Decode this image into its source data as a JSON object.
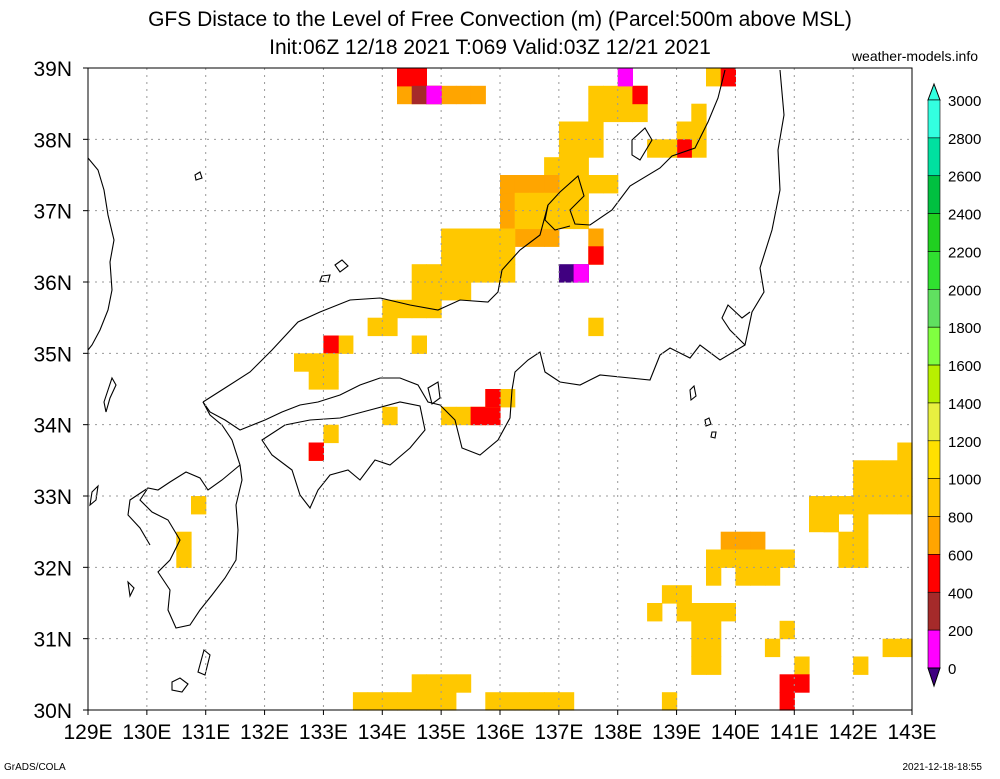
{
  "title_line1": "GFS Distace to the Level of Free Convection (m) (Parcel:500m above MSL)",
  "title_line2": "Init:06Z 12/18 2021 T:069 Valid:03Z 12/21 2021",
  "site": "weather-models.info",
  "footer_left": "GrADS/COLA",
  "footer_right": "2021-12-18-18:55",
  "lon_labels": [
    "129E",
    "130E",
    "131E",
    "132E",
    "133E",
    "134E",
    "135E",
    "136E",
    "137E",
    "138E",
    "139E",
    "140E",
    "141E",
    "142E",
    "143E"
  ],
  "lat_labels": [
    "39N",
    "38N",
    "37N",
    "36N",
    "35N",
    "34N",
    "33N",
    "32N",
    "31N",
    "30N"
  ],
  "legend": {
    "labels": [
      "3000",
      "2800",
      "2600",
      "2400",
      "2200",
      "2000",
      "1800",
      "1600",
      "1400",
      "1200",
      "1000",
      "800",
      "600",
      "400",
      "200",
      "0"
    ],
    "colors_top_to_bottom": [
      "#33ffe0",
      "#00e0a0",
      "#00c040",
      "#20d020",
      "#30e030",
      "#60e060",
      "#80ff40",
      "#b8f000",
      "#e8f040",
      "#ffe000",
      "#ffc800",
      "#ffa500",
      "#ff0000",
      "#a52a2a",
      "#ff00ff",
      "#400080"
    ]
  },
  "colors": {
    "c1000": "#ffc800",
    "c800": "#ffa500",
    "c1200": "#ffe000",
    "c600": "#ff0000",
    "c400": "#a52a2a",
    "c200": "#ff00ff",
    "c0": "#400080"
  }
}
